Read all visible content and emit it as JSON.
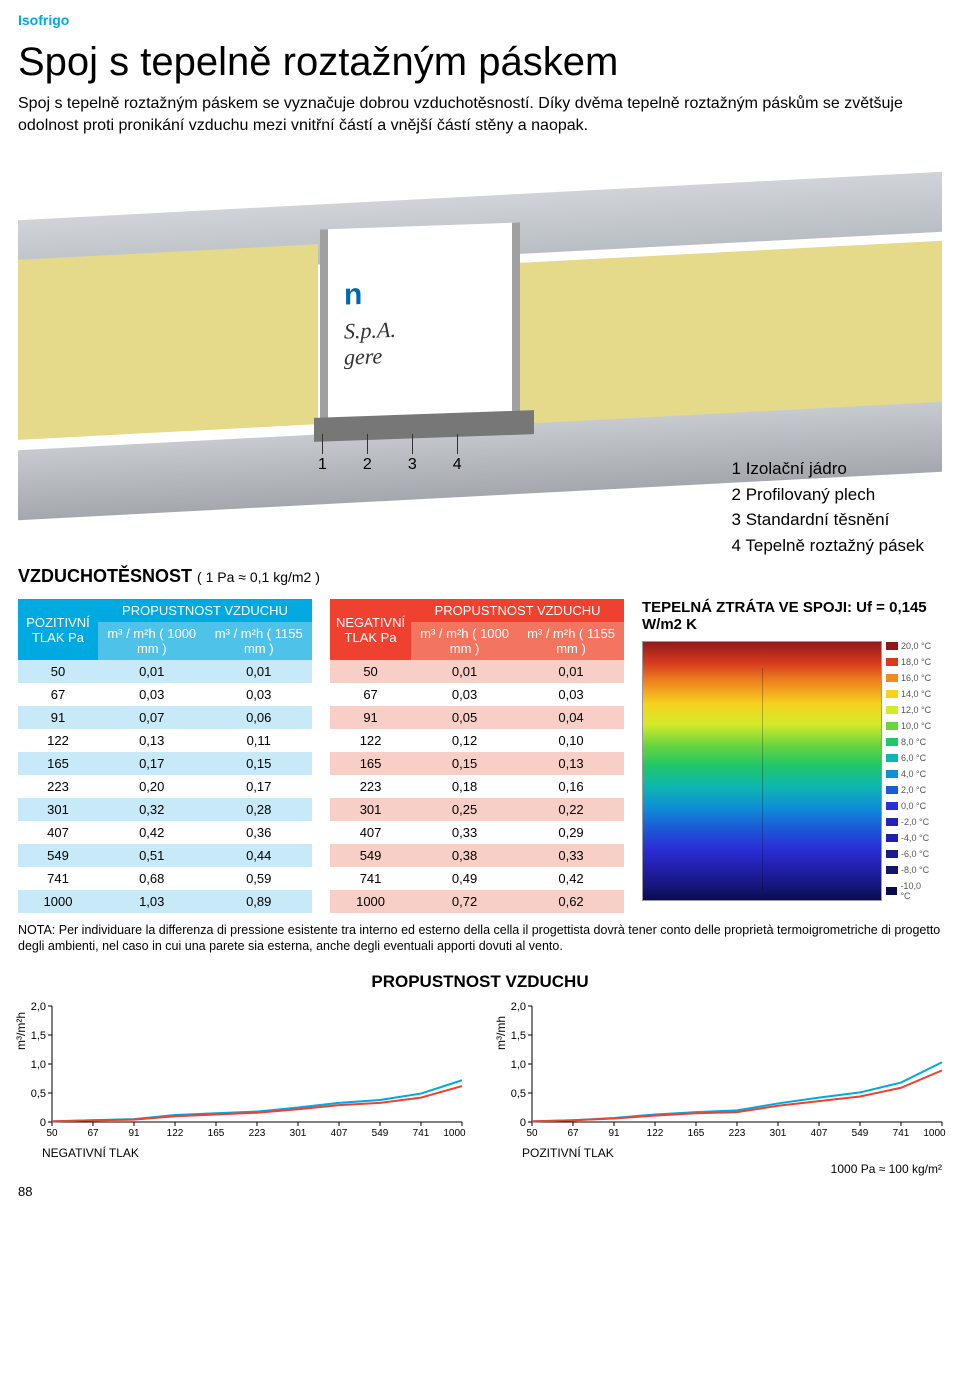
{
  "brand": "Isofrigo",
  "title": "Spoj s tepelně roztažným páskem",
  "intro": "Spoj s tepelně roztažným páskem se vyznačuje dobrou vzduchotěsností. Díky dvěma tepelně roztažným páskům se zvětšuje odolnost proti pronikání vzduchu mezi vnitřní částí a vnější částí stěny a naopak.",
  "hero": {
    "joint_text": "n",
    "joint_sub1": "S.p.A.",
    "joint_sub2": "gere",
    "callouts": [
      "1",
      "2",
      "3",
      "4"
    ],
    "legend": [
      "1  Izolační jádro",
      "2  Profilovaný plech",
      "3  Standardní těsnění",
      "4  Tepelně roztažný pásek"
    ]
  },
  "air_section": {
    "title": "VZDUCHOTĚSNOST",
    "unit": "( 1 Pa ≈ 0,1 kg/m2 )"
  },
  "table_pos": {
    "hdr_press": "POZITIVNÍ TLAK Pa",
    "hdr_perm": "PROPUSTNOST VZDUCHU",
    "col1": "m³ / m²h ( 1000 mm )",
    "col2": "m³ / m²h ( 1155 mm )"
  },
  "table_neg": {
    "hdr_press": "NEGATIVNÍ TLAK Pa",
    "hdr_perm": "PROPUSTNOST VZDUCHU",
    "col1": "m³ / m²h ( 1000 mm )",
    "col2": "m³ / m²h ( 1155 mm )"
  },
  "rows_pos": [
    [
      "50",
      "0,01",
      "0,01"
    ],
    [
      "67",
      "0,03",
      "0,03"
    ],
    [
      "91",
      "0,07",
      "0,06"
    ],
    [
      "122",
      "0,13",
      "0,11"
    ],
    [
      "165",
      "0,17",
      "0,15"
    ],
    [
      "223",
      "0,20",
      "0,17"
    ],
    [
      "301",
      "0,32",
      "0,28"
    ],
    [
      "407",
      "0,42",
      "0,36"
    ],
    [
      "549",
      "0,51",
      "0,44"
    ],
    [
      "741",
      "0,68",
      "0,59"
    ],
    [
      "1000",
      "1,03",
      "0,89"
    ]
  ],
  "rows_neg": [
    [
      "50",
      "0,01",
      "0,01"
    ],
    [
      "67",
      "0,03",
      "0,03"
    ],
    [
      "91",
      "0,05",
      "0,04"
    ],
    [
      "122",
      "0,12",
      "0,10"
    ],
    [
      "165",
      "0,15",
      "0,13"
    ],
    [
      "223",
      "0,18",
      "0,16"
    ],
    [
      "301",
      "0,25",
      "0,22"
    ],
    [
      "407",
      "0,33",
      "0,29"
    ],
    [
      "549",
      "0,38",
      "0,33"
    ],
    [
      "741",
      "0,49",
      "0,42"
    ],
    [
      "1000",
      "0,72",
      "0,62"
    ]
  ],
  "thermal": {
    "title": "TEPELNÁ ZTRÁTA VE SPOJI: Uf = 0,145 W/m2 K",
    "scale": [
      {
        "c": "#8f1a1a",
        "t": "20,0 °C"
      },
      {
        "c": "#d63a1f",
        "t": "18,0 °C"
      },
      {
        "c": "#f08a1f",
        "t": "16,0 °C"
      },
      {
        "c": "#f6d21f",
        "t": "14,0 °C"
      },
      {
        "c": "#d3ea2a",
        "t": "12,0 °C"
      },
      {
        "c": "#6ad43f",
        "t": "10,0 °C"
      },
      {
        "c": "#1fc66a",
        "t": "8,0 °C"
      },
      {
        "c": "#0fb6b0",
        "t": "6,0 °C"
      },
      {
        "c": "#0f8fd6",
        "t": "4,0 °C"
      },
      {
        "c": "#1a5bd6",
        "t": "2,0 °C"
      },
      {
        "c": "#2a2fd6",
        "t": "0,0 °C"
      },
      {
        "c": "#2622b8",
        "t": "-2,0 °C"
      },
      {
        "c": "#201fa8",
        "t": "-4,0 °C"
      },
      {
        "c": "#1a1a90",
        "t": "-6,0 °C"
      },
      {
        "c": "#141470",
        "t": "-8,0 °C"
      },
      {
        "c": "#0a0a50",
        "t": "-10,0 °C"
      }
    ]
  },
  "note": "NOTA: Per individuare la differenza di pressione esistente tra interno ed esterno della cella il progettista dovrà tener conto delle proprietà termoigrometriche di progetto degli ambienti, nel caso in cui una parete sia esterna, anche degli eventuali apporti dovuti al vento.",
  "chart_title": "PROPUSTNOST VZDUCHU",
  "chart": {
    "y_ticks": [
      "2,0",
      "1,5",
      "1,0",
      "0,5",
      "0"
    ],
    "x_ticks": [
      "50",
      "67",
      "91",
      "122",
      "165",
      "223",
      "301",
      "407",
      "549",
      "741",
      "1000 Pa"
    ],
    "ylab": "m³/m²h",
    "ylab2": "m³/mh",
    "left_footer": "NEGATIVNÍ TLAK",
    "right_footer": "POZITIVNÍ TLAK",
    "neg_series_1000": [
      0.01,
      0.03,
      0.05,
      0.12,
      0.15,
      0.18,
      0.25,
      0.33,
      0.38,
      0.49,
      0.72
    ],
    "neg_series_1155": [
      0.01,
      0.03,
      0.04,
      0.1,
      0.13,
      0.16,
      0.22,
      0.29,
      0.33,
      0.42,
      0.62
    ],
    "pos_series_1000": [
      0.01,
      0.03,
      0.07,
      0.13,
      0.17,
      0.2,
      0.32,
      0.42,
      0.51,
      0.68,
      1.03
    ],
    "pos_series_1155": [
      0.01,
      0.03,
      0.06,
      0.11,
      0.15,
      0.17,
      0.28,
      0.36,
      0.44,
      0.59,
      0.89
    ],
    "ylim": [
      0,
      2.0
    ],
    "colors": [
      "#00a9e0",
      "#ef4130"
    ]
  },
  "unit_note": "1000 Pa ≈ 100 kg/m²",
  "page_num": "88"
}
